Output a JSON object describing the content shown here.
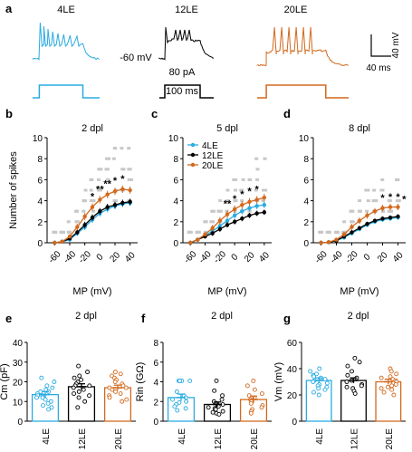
{
  "colors": {
    "le4": "#29abe2",
    "le12": "#000000",
    "le20": "#d2691e",
    "grey": "#c8c8c8",
    "star": "#000000"
  },
  "panel_a": {
    "letter": "a",
    "traces": [
      {
        "label": "4LE",
        "color": "#29abe2",
        "pattern": "4LE"
      },
      {
        "label": "12LE",
        "color": "#000000",
        "pattern": "12LE"
      },
      {
        "label": "20LE",
        "color": "#d2691e",
        "pattern": "20LE"
      }
    ],
    "vhold_label": "-60 mV",
    "current_label": "80 pA",
    "time_label": "100 ms",
    "scale_v": "40 mV",
    "scale_t": "40 ms"
  },
  "chart_data": [
    {
      "panel": "b",
      "type": "line",
      "title": "2 dpl",
      "xlabel": "MP (mV)",
      "ylabel": "Number of spikes",
      "xlim": [
        -70,
        50
      ],
      "ylim": [
        0,
        10
      ],
      "xticks": [
        "-60",
        "-40",
        "-20",
        "0",
        "20",
        "40"
      ],
      "yticks": [
        "0",
        "2",
        "4",
        "6",
        "8",
        "10"
      ],
      "x": [
        -60,
        -50,
        -40,
        -30,
        -20,
        -10,
        0,
        10,
        20,
        30,
        40
      ],
      "series": [
        {
          "name": "4LE",
          "color": "#29abe2",
          "values": [
            0,
            0.1,
            0.3,
            0.9,
            1.5,
            2.2,
            2.8,
            3.2,
            3.5,
            3.7,
            3.8
          ],
          "err": [
            0,
            0.05,
            0.15,
            0.25,
            0.3,
            0.3,
            0.3,
            0.3,
            0.3,
            0.3,
            0.3
          ]
        },
        {
          "name": "12LE",
          "color": "#000000",
          "values": [
            0,
            0.1,
            0.4,
            1.0,
            1.7,
            2.4,
            3.0,
            3.4,
            3.6,
            3.8,
            3.9
          ],
          "err": [
            0,
            0.05,
            0.15,
            0.25,
            0.3,
            0.3,
            0.3,
            0.3,
            0.3,
            0.3,
            0.3
          ]
        },
        {
          "name": "20LE",
          "color": "#d2691e",
          "values": [
            0,
            0.1,
            0.6,
            1.5,
            2.5,
            3.4,
            4.1,
            4.6,
            4.9,
            5.1,
            5.0
          ],
          "err": [
            0,
            0.05,
            0.2,
            0.3,
            0.35,
            0.35,
            0.35,
            0.35,
            0.35,
            0.35,
            0.35
          ]
        }
      ],
      "significance": [
        {
          "x": -10,
          "text": "*"
        },
        {
          "x": 0,
          "text": "**"
        },
        {
          "x": 10,
          "text": "**"
        },
        {
          "x": 20,
          "text": "*"
        },
        {
          "x": 30,
          "text": "*"
        }
      ]
    },
    {
      "panel": "c",
      "type": "line",
      "title": "5 dpl",
      "xlabel": "MP (mV)",
      "ylabel": "",
      "xlim": [
        -70,
        50
      ],
      "ylim": [
        0,
        10
      ],
      "xticks": [
        "-60",
        "-40",
        "-20",
        "0",
        "20",
        "40"
      ],
      "yticks": [
        "0",
        "2",
        "4",
        "6",
        "8",
        "10"
      ],
      "x": [
        -60,
        -50,
        -40,
        -30,
        -20,
        -10,
        0,
        10,
        20,
        30,
        40
      ],
      "series": [
        {
          "name": "4LE",
          "color": "#29abe2",
          "values": [
            0,
            0.3,
            0.7,
            1.1,
            1.6,
            2.1,
            2.6,
            3.0,
            3.3,
            3.5,
            3.6
          ],
          "err": [
            0,
            0.1,
            0.2,
            0.25,
            0.3,
            0.3,
            0.3,
            0.3,
            0.3,
            0.3,
            0.3
          ]
        },
        {
          "name": "12LE",
          "color": "#000000",
          "values": [
            0,
            0.3,
            0.6,
            0.9,
            1.3,
            1.7,
            2.0,
            2.3,
            2.6,
            2.8,
            2.9
          ],
          "err": [
            0,
            0.1,
            0.2,
            0.25,
            0.25,
            0.25,
            0.25,
            0.25,
            0.25,
            0.25,
            0.25
          ]
        },
        {
          "name": "20LE",
          "color": "#d2691e",
          "values": [
            0,
            0.3,
            0.8,
            1.4,
            2.1,
            2.7,
            3.2,
            3.6,
            3.9,
            4.1,
            4.3
          ],
          "err": [
            0,
            0.1,
            0.2,
            0.3,
            0.35,
            0.35,
            0.35,
            0.35,
            0.35,
            0.35,
            0.35
          ]
        }
      ],
      "significance": [
        {
          "x": -10,
          "text": "**"
        },
        {
          "x": 0,
          "text": "*"
        },
        {
          "x": 10,
          "text": "*"
        },
        {
          "x": 20,
          "text": "*"
        },
        {
          "x": 30,
          "text": "*"
        }
      ],
      "legend": [
        {
          "name": "4LE",
          "color": "#29abe2"
        },
        {
          "name": "12LE",
          "color": "#000000"
        },
        {
          "name": "20LE",
          "color": "#d2691e"
        }
      ]
    },
    {
      "panel": "d",
      "type": "line",
      "title": "8 dpl",
      "xlabel": "MP (mV)",
      "ylabel": "",
      "xlim": [
        -70,
        50
      ],
      "ylim": [
        0,
        10
      ],
      "xticks": [
        "-60",
        "-40",
        "-20",
        "0",
        "20",
        "40"
      ],
      "yticks": [
        "0",
        "2",
        "4",
        "6",
        "8",
        "10"
      ],
      "x": [
        -60,
        -50,
        -40,
        -30,
        -20,
        -10,
        0,
        10,
        20,
        30,
        40
      ],
      "series": [
        {
          "name": "4LE",
          "color": "#29abe2",
          "values": [
            0,
            0.05,
            0.2,
            0.5,
            0.9,
            1.3,
            1.7,
            2.0,
            2.2,
            2.3,
            2.4
          ],
          "err": [
            0,
            0.05,
            0.1,
            0.2,
            0.2,
            0.2,
            0.2,
            0.2,
            0.2,
            0.2,
            0.2
          ]
        },
        {
          "name": "12LE",
          "color": "#000000",
          "values": [
            0,
            0.05,
            0.2,
            0.6,
            1.0,
            1.4,
            1.8,
            2.1,
            2.3,
            2.4,
            2.5
          ],
          "err": [
            0,
            0.05,
            0.1,
            0.2,
            0.2,
            0.2,
            0.2,
            0.2,
            0.2,
            0.2,
            0.2
          ]
        },
        {
          "name": "20LE",
          "color": "#d2691e",
          "values": [
            0,
            0.05,
            0.3,
            0.8,
            1.5,
            2.1,
            2.6,
            3.0,
            3.3,
            3.4,
            3.4
          ],
          "err": [
            0,
            0.05,
            0.15,
            0.25,
            0.3,
            0.3,
            0.3,
            0.3,
            0.3,
            0.3,
            0.3
          ]
        }
      ],
      "significance": [
        {
          "x": 20,
          "text": "*"
        },
        {
          "x": 30,
          "text": "*"
        },
        {
          "x": 40,
          "text": "*"
        },
        {
          "x": 50,
          "text": "*"
        }
      ]
    },
    {
      "panel": "e",
      "type": "bar",
      "title": "2 dpl",
      "ylabel": "Cm (pF)",
      "ylim": [
        0,
        40
      ],
      "yticks": [
        "0",
        "10",
        "20",
        "30",
        "40"
      ],
      "categories": [
        "4LE",
        "12LE",
        "20LE"
      ],
      "colors": [
        "#29abe2",
        "#000000",
        "#d2691e"
      ],
      "values": [
        13.5,
        17.5,
        17.0
      ],
      "err": [
        1.5,
        1.5,
        1.3
      ],
      "points": [
        [
          22,
          20,
          18,
          17,
          16,
          15,
          15,
          14,
          13,
          13,
          12,
          12,
          11,
          10,
          9,
          8,
          7,
          6
        ],
        [
          28,
          25,
          23,
          22,
          21,
          20,
          19,
          18,
          18,
          17,
          16,
          15,
          14,
          13,
          12,
          10,
          7
        ],
        [
          25,
          24,
          23,
          22,
          21,
          20,
          19,
          18,
          17,
          17,
          16,
          15,
          14,
          13,
          12,
          11,
          10
        ]
      ]
    },
    {
      "panel": "f",
      "type": "bar",
      "title": "2 dpl",
      "ylabel": "Rin (GΩ)",
      "ylim": [
        0,
        8
      ],
      "yticks": [
        "0",
        "2",
        "4",
        "6",
        "8"
      ],
      "categories": [
        "4LE",
        "12LE",
        "20LE"
      ],
      "colors": [
        "#29abe2",
        "#000000",
        "#d2691e"
      ],
      "values": [
        2.4,
        1.7,
        2.2
      ],
      "err": [
        0.35,
        0.25,
        0.35
      ],
      "points": [
        [
          4.1,
          4.1,
          4.1,
          4.1,
          4.1,
          4.1,
          3.0,
          2.6,
          2.4,
          2.2,
          2.0,
          1.9,
          1.7,
          1.5,
          1.3,
          1.1
        ],
        [
          4.1,
          3.1,
          2.6,
          2.2,
          2.0,
          1.8,
          1.7,
          1.6,
          1.5,
          1.4,
          1.3,
          1.2,
          1.0,
          0.9,
          0.8,
          0.7
        ],
        [
          4.1,
          3.6,
          3.2,
          2.8,
          2.6,
          2.4,
          2.2,
          2.0,
          1.8,
          1.6,
          1.4,
          1.2,
          1.0,
          0.8
        ]
      ]
    },
    {
      "panel": "g",
      "type": "bar",
      "title": "2 dpl",
      "ylabel": "Vm (mV)",
      "ylim": [
        0,
        60
      ],
      "yticks": [
        "0",
        "20",
        "40",
        "60"
      ],
      "categories": [
        "4LE",
        "12LE",
        "20LE"
      ],
      "colors": [
        "#29abe2",
        "#000000",
        "#d2691e"
      ],
      "values": [
        31,
        31,
        30
      ],
      "err": [
        2,
        2,
        2
      ],
      "points": [
        [
          40,
          38,
          36,
          35,
          34,
          33,
          32,
          31,
          30,
          29,
          28,
          27,
          26,
          25,
          24,
          22,
          20
        ],
        [
          48,
          45,
          42,
          38,
          35,
          33,
          31,
          30,
          28,
          27,
          26,
          25,
          23,
          21
        ],
        [
          40,
          38,
          36,
          34,
          33,
          32,
          31,
          30,
          29,
          28,
          27,
          26,
          25,
          24,
          22,
          20
        ]
      ]
    }
  ]
}
